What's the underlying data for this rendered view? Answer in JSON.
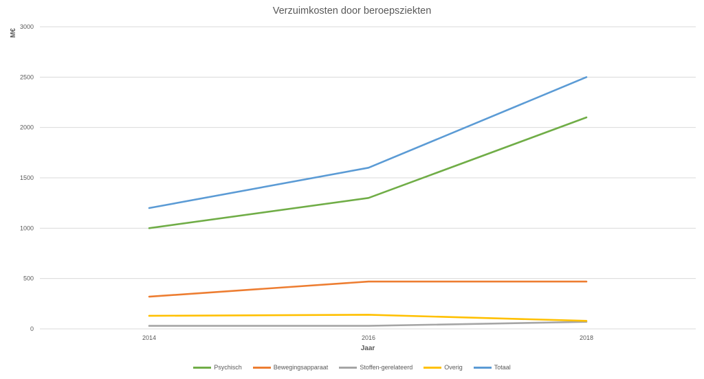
{
  "chart_data": {
    "type": "line",
    "title": "Verzuimkosten door beroepsziekten",
    "xlabel": "Jaar",
    "ylabel": "M€",
    "categories": [
      "2014",
      "2016",
      "2018"
    ],
    "ylim": [
      0,
      3000
    ],
    "yticks": [
      "0",
      "500",
      "1000",
      "1500",
      "2000",
      "2500",
      "3000"
    ],
    "grid": true,
    "legend_position": "bottom",
    "series": [
      {
        "name": "Psychisch",
        "color": "#70AD47",
        "values": [
          1000,
          1300,
          2100
        ]
      },
      {
        "name": "Bewegingsapparaat",
        "color": "#ED7D31",
        "values": [
          320,
          470,
          470
        ]
      },
      {
        "name": "Stoffen-gerelateerd",
        "color": "#A5A5A5",
        "values": [
          30,
          30,
          70
        ]
      },
      {
        "name": "Overig",
        "color": "#FFC000",
        "values": [
          130,
          140,
          80
        ]
      },
      {
        "name": "Totaal",
        "color": "#5B9BD5",
        "values": [
          1200,
          1600,
          2500
        ]
      }
    ]
  }
}
